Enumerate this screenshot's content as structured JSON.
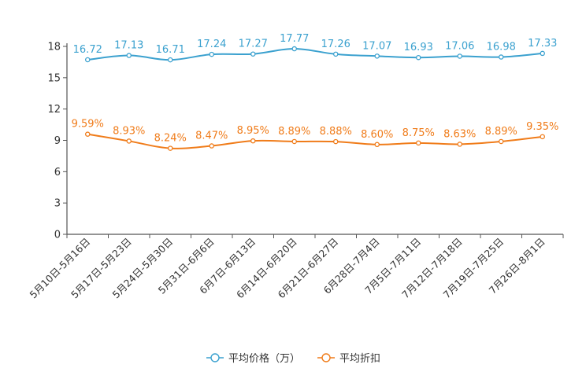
{
  "chart_data": {
    "type": "line",
    "title": "",
    "xlabel": "",
    "ylabel": "",
    "ylim": [
      0,
      18
    ],
    "yticks": [
      0,
      3,
      6,
      9,
      12,
      15,
      18
    ],
    "categories": [
      "5月10日-5月16日",
      "5月17日-5月23日",
      "5月24日-5月30日",
      "5月31日-6月6日",
      "6月7日-6月13日",
      "6月14日-6月20日",
      "6月21日-6月27日",
      "6月28日-7月4日",
      "7月5日-7月11日",
      "7月12日-7月18日",
      "7月19日-7月25日",
      "7月26日-8月1日"
    ],
    "series": [
      {
        "name": "平均价格（万）",
        "color": "#3ba1cf",
        "values": [
          16.72,
          17.13,
          16.71,
          17.24,
          17.27,
          17.77,
          17.26,
          17.07,
          16.93,
          17.06,
          16.98,
          17.33
        ],
        "labels": [
          "16.72",
          "17.13",
          "16.71",
          "17.24",
          "17.27",
          "17.77",
          "17.26",
          "17.07",
          "16.93",
          "17.06",
          "16.98",
          "17.33"
        ]
      },
      {
        "name": "平均折扣",
        "color": "#f07c1a",
        "values": [
          9.59,
          8.93,
          8.24,
          8.47,
          8.95,
          8.89,
          8.88,
          8.6,
          8.75,
          8.63,
          8.89,
          9.35
        ],
        "labels": [
          "9.59%",
          "8.93%",
          "8.24%",
          "8.47%",
          "8.95%",
          "8.89%",
          "8.88%",
          "8.60%",
          "8.75%",
          "8.63%",
          "8.89%",
          "9.35%"
        ]
      }
    ],
    "legend_position": "bottom-center"
  }
}
